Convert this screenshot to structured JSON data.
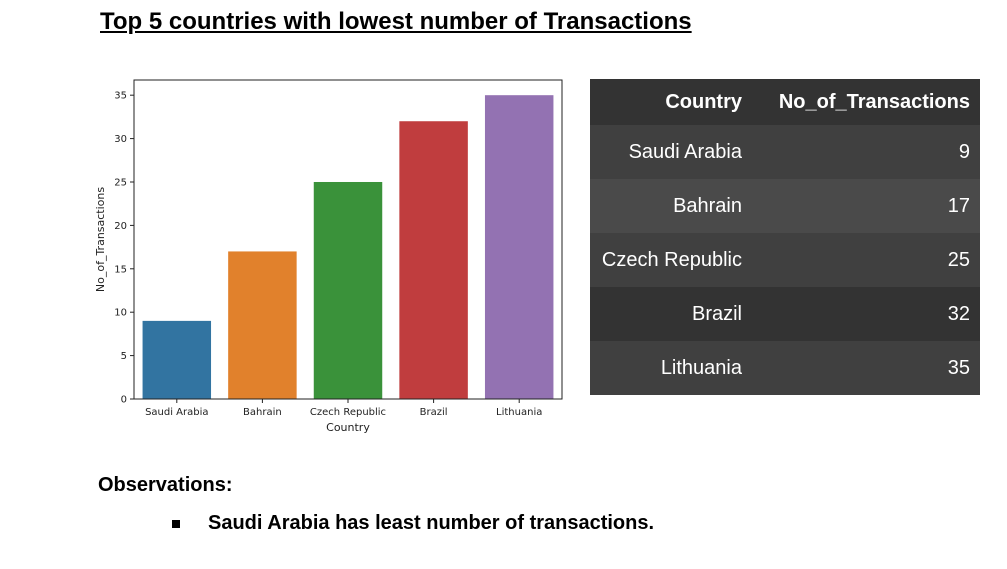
{
  "title": "Top 5 countries with lowest number of Transactions",
  "chart_data": {
    "type": "bar",
    "categories": [
      "Saudi Arabia",
      "Bahrain",
      "Czech Republic",
      "Brazil",
      "Lithuania"
    ],
    "values": [
      9,
      17,
      25,
      32,
      35
    ],
    "colors": [
      "#3274a1",
      "#e1812c",
      "#3a923a",
      "#c03d3e",
      "#9372b2"
    ],
    "title": "",
    "xlabel": "Country",
    "ylabel": "No_of_Transactions",
    "ylim": [
      0,
      36.75
    ],
    "yticks": [
      0,
      5,
      10,
      15,
      20,
      25,
      30,
      35
    ],
    "grid": false
  },
  "table": {
    "headers": [
      "Country",
      "No_of_Transactions"
    ],
    "rows": [
      {
        "country": "Saudi Arabia",
        "value": "9",
        "bg": "#404040"
      },
      {
        "country": "Bahrain",
        "value": "17",
        "bg": "#4a4a4a"
      },
      {
        "country": "Czech Republic",
        "value": "25",
        "bg": "#404040"
      },
      {
        "country": "Brazil",
        "value": "32",
        "bg": "#333333"
      },
      {
        "country": "Lithuania",
        "value": "35",
        "bg": "#404040"
      }
    ]
  },
  "observations": {
    "label": "Observations:",
    "items": [
      "Saudi Arabia has least number of transactions."
    ]
  }
}
